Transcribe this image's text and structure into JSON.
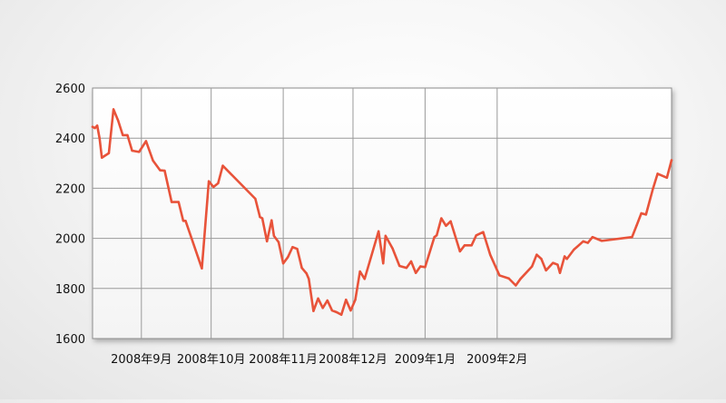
{
  "chart_data": {
    "type": "line",
    "title": "",
    "xlabel": "",
    "ylabel": "",
    "ylim": [
      1600,
      2600
    ],
    "yticks": [
      1600,
      1800,
      2000,
      2200,
      2400,
      2600
    ],
    "xticks": [
      {
        "label": "2008年9月",
        "date": "2008-09-01"
      },
      {
        "label": "2008年10月",
        "date": "2008-10-01"
      },
      {
        "label": "2008年11月",
        "date": "2008-11-01"
      },
      {
        "label": "2008年12月",
        "date": "2008-12-01"
      },
      {
        "label": "2009年1月",
        "date": "2009-01-01"
      },
      {
        "label": "2009年2月",
        "date": "2009-02-01"
      }
    ],
    "grid": true,
    "series": [
      {
        "color": "#e8533a",
        "points": [
          [
            "2008-08-11",
            2445
          ],
          [
            "2008-08-12",
            2440
          ],
          [
            "2008-08-13",
            2450
          ],
          [
            "2008-08-14",
            2400
          ],
          [
            "2008-08-15",
            2322
          ],
          [
            "2008-08-18",
            2340
          ],
          [
            "2008-08-20",
            2515
          ],
          [
            "2008-08-22",
            2470
          ],
          [
            "2008-08-24",
            2412
          ],
          [
            "2008-08-26",
            2412
          ],
          [
            "2008-08-28",
            2350
          ],
          [
            "2008-08-31",
            2345
          ],
          [
            "2008-09-03",
            2388
          ],
          [
            "2008-09-06",
            2310
          ],
          [
            "2008-09-09",
            2272
          ],
          [
            "2008-09-11",
            2270
          ],
          [
            "2008-09-14",
            2145
          ],
          [
            "2008-09-17",
            2145
          ],
          [
            "2008-09-19",
            2070
          ],
          [
            "2008-09-20",
            2070
          ],
          [
            "2008-09-27",
            1880
          ],
          [
            "2008-09-30",
            2228
          ],
          [
            "2008-10-02",
            2205
          ],
          [
            "2008-10-04",
            2220
          ],
          [
            "2008-10-06",
            2290
          ],
          [
            "2008-10-20",
            2158
          ],
          [
            "2008-10-22",
            2085
          ],
          [
            "2008-10-23",
            2080
          ],
          [
            "2008-10-25",
            1988
          ],
          [
            "2008-10-27",
            2072
          ],
          [
            "2008-10-28",
            2010
          ],
          [
            "2008-10-30",
            1985
          ],
          [
            "2008-11-01",
            1900
          ],
          [
            "2008-11-03",
            1925
          ],
          [
            "2008-11-05",
            1965
          ],
          [
            "2008-11-07",
            1958
          ],
          [
            "2008-11-09",
            1882
          ],
          [
            "2008-11-11",
            1860
          ],
          [
            "2008-11-12",
            1838
          ],
          [
            "2008-11-14",
            1710
          ],
          [
            "2008-11-16",
            1760
          ],
          [
            "2008-11-18",
            1722
          ],
          [
            "2008-11-20",
            1752
          ],
          [
            "2008-11-22",
            1712
          ],
          [
            "2008-11-24",
            1705
          ],
          [
            "2008-11-26",
            1695
          ],
          [
            "2008-11-28",
            1755
          ],
          [
            "2008-11-30",
            1712
          ],
          [
            "2008-12-02",
            1755
          ],
          [
            "2008-12-04",
            1868
          ],
          [
            "2008-12-06",
            1838
          ],
          [
            "2008-12-12",
            2028
          ],
          [
            "2008-12-14",
            1900
          ],
          [
            "2008-12-15",
            2010
          ],
          [
            "2008-12-18",
            1960
          ],
          [
            "2008-12-21",
            1890
          ],
          [
            "2008-12-24",
            1882
          ],
          [
            "2008-12-26",
            1908
          ],
          [
            "2008-12-28",
            1862
          ],
          [
            "2008-12-30",
            1888
          ],
          [
            "2009-01-01",
            1885
          ],
          [
            "2009-01-05",
            2005
          ],
          [
            "2009-01-06",
            2012
          ],
          [
            "2009-01-08",
            2080
          ],
          [
            "2009-01-10",
            2050
          ],
          [
            "2009-01-12",
            2068
          ],
          [
            "2009-01-16",
            1948
          ],
          [
            "2009-01-18",
            1972
          ],
          [
            "2009-01-21",
            1972
          ],
          [
            "2009-01-23",
            2012
          ],
          [
            "2009-01-26",
            2025
          ],
          [
            "2009-01-29",
            1935
          ],
          [
            "2009-02-02",
            1852
          ],
          [
            "2009-02-06",
            1840
          ],
          [
            "2009-02-09",
            1812
          ],
          [
            "2009-02-11",
            1838
          ],
          [
            "2009-02-16",
            1888
          ],
          [
            "2009-02-18",
            1935
          ],
          [
            "2009-02-20",
            1918
          ],
          [
            "2009-02-22",
            1872
          ],
          [
            "2009-02-25",
            1902
          ],
          [
            "2009-02-27",
            1895
          ],
          [
            "2009-02-28",
            1862
          ],
          [
            "2009-03-02",
            1928
          ],
          [
            "2009-03-03",
            1918
          ],
          [
            "2009-03-06",
            1955
          ],
          [
            "2009-03-10",
            1988
          ],
          [
            "2009-03-12",
            1982
          ],
          [
            "2009-03-14",
            2005
          ],
          [
            "2009-03-18",
            1990
          ],
          [
            "2009-03-31",
            2005
          ],
          [
            "2009-04-02",
            2052
          ],
          [
            "2009-04-04",
            2100
          ],
          [
            "2009-04-06",
            2095
          ],
          [
            "2009-04-09",
            2198
          ],
          [
            "2009-04-11",
            2258
          ],
          [
            "2009-04-15",
            2242
          ],
          [
            "2009-04-17",
            2312
          ]
        ]
      }
    ]
  }
}
